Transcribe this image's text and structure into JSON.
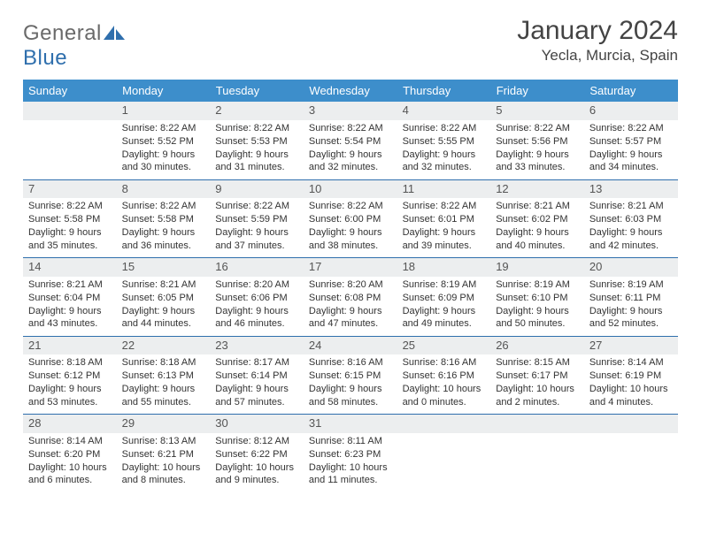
{
  "brand": {
    "general": "General",
    "blue": "Blue"
  },
  "title": "January 2024",
  "location": "Yecla, Murcia, Spain",
  "colors": {
    "header_bg": "#3d8ecb",
    "header_text": "#ffffff",
    "rule": "#2f6fad",
    "daynum_bg": "#eceeef",
    "text": "#333333",
    "logo_general": "#6a6a6a",
    "logo_blue": "#2f6fad"
  },
  "weekdays": [
    "Sunday",
    "Monday",
    "Tuesday",
    "Wednesday",
    "Thursday",
    "Friday",
    "Saturday"
  ],
  "weeks": [
    [
      {
        "n": "",
        "sr": "",
        "ss": "",
        "d1": "",
        "d2": ""
      },
      {
        "n": "1",
        "sr": "Sunrise: 8:22 AM",
        "ss": "Sunset: 5:52 PM",
        "d1": "Daylight: 9 hours",
        "d2": "and 30 minutes."
      },
      {
        "n": "2",
        "sr": "Sunrise: 8:22 AM",
        "ss": "Sunset: 5:53 PM",
        "d1": "Daylight: 9 hours",
        "d2": "and 31 minutes."
      },
      {
        "n": "3",
        "sr": "Sunrise: 8:22 AM",
        "ss": "Sunset: 5:54 PM",
        "d1": "Daylight: 9 hours",
        "d2": "and 32 minutes."
      },
      {
        "n": "4",
        "sr": "Sunrise: 8:22 AM",
        "ss": "Sunset: 5:55 PM",
        "d1": "Daylight: 9 hours",
        "d2": "and 32 minutes."
      },
      {
        "n": "5",
        "sr": "Sunrise: 8:22 AM",
        "ss": "Sunset: 5:56 PM",
        "d1": "Daylight: 9 hours",
        "d2": "and 33 minutes."
      },
      {
        "n": "6",
        "sr": "Sunrise: 8:22 AM",
        "ss": "Sunset: 5:57 PM",
        "d1": "Daylight: 9 hours",
        "d2": "and 34 minutes."
      }
    ],
    [
      {
        "n": "7",
        "sr": "Sunrise: 8:22 AM",
        "ss": "Sunset: 5:58 PM",
        "d1": "Daylight: 9 hours",
        "d2": "and 35 minutes."
      },
      {
        "n": "8",
        "sr": "Sunrise: 8:22 AM",
        "ss": "Sunset: 5:58 PM",
        "d1": "Daylight: 9 hours",
        "d2": "and 36 minutes."
      },
      {
        "n": "9",
        "sr": "Sunrise: 8:22 AM",
        "ss": "Sunset: 5:59 PM",
        "d1": "Daylight: 9 hours",
        "d2": "and 37 minutes."
      },
      {
        "n": "10",
        "sr": "Sunrise: 8:22 AM",
        "ss": "Sunset: 6:00 PM",
        "d1": "Daylight: 9 hours",
        "d2": "and 38 minutes."
      },
      {
        "n": "11",
        "sr": "Sunrise: 8:22 AM",
        "ss": "Sunset: 6:01 PM",
        "d1": "Daylight: 9 hours",
        "d2": "and 39 minutes."
      },
      {
        "n": "12",
        "sr": "Sunrise: 8:21 AM",
        "ss": "Sunset: 6:02 PM",
        "d1": "Daylight: 9 hours",
        "d2": "and 40 minutes."
      },
      {
        "n": "13",
        "sr": "Sunrise: 8:21 AM",
        "ss": "Sunset: 6:03 PM",
        "d1": "Daylight: 9 hours",
        "d2": "and 42 minutes."
      }
    ],
    [
      {
        "n": "14",
        "sr": "Sunrise: 8:21 AM",
        "ss": "Sunset: 6:04 PM",
        "d1": "Daylight: 9 hours",
        "d2": "and 43 minutes."
      },
      {
        "n": "15",
        "sr": "Sunrise: 8:21 AM",
        "ss": "Sunset: 6:05 PM",
        "d1": "Daylight: 9 hours",
        "d2": "and 44 minutes."
      },
      {
        "n": "16",
        "sr": "Sunrise: 8:20 AM",
        "ss": "Sunset: 6:06 PM",
        "d1": "Daylight: 9 hours",
        "d2": "and 46 minutes."
      },
      {
        "n": "17",
        "sr": "Sunrise: 8:20 AM",
        "ss": "Sunset: 6:08 PM",
        "d1": "Daylight: 9 hours",
        "d2": "and 47 minutes."
      },
      {
        "n": "18",
        "sr": "Sunrise: 8:19 AM",
        "ss": "Sunset: 6:09 PM",
        "d1": "Daylight: 9 hours",
        "d2": "and 49 minutes."
      },
      {
        "n": "19",
        "sr": "Sunrise: 8:19 AM",
        "ss": "Sunset: 6:10 PM",
        "d1": "Daylight: 9 hours",
        "d2": "and 50 minutes."
      },
      {
        "n": "20",
        "sr": "Sunrise: 8:19 AM",
        "ss": "Sunset: 6:11 PM",
        "d1": "Daylight: 9 hours",
        "d2": "and 52 minutes."
      }
    ],
    [
      {
        "n": "21",
        "sr": "Sunrise: 8:18 AM",
        "ss": "Sunset: 6:12 PM",
        "d1": "Daylight: 9 hours",
        "d2": "and 53 minutes."
      },
      {
        "n": "22",
        "sr": "Sunrise: 8:18 AM",
        "ss": "Sunset: 6:13 PM",
        "d1": "Daylight: 9 hours",
        "d2": "and 55 minutes."
      },
      {
        "n": "23",
        "sr": "Sunrise: 8:17 AM",
        "ss": "Sunset: 6:14 PM",
        "d1": "Daylight: 9 hours",
        "d2": "and 57 minutes."
      },
      {
        "n": "24",
        "sr": "Sunrise: 8:16 AM",
        "ss": "Sunset: 6:15 PM",
        "d1": "Daylight: 9 hours",
        "d2": "and 58 minutes."
      },
      {
        "n": "25",
        "sr": "Sunrise: 8:16 AM",
        "ss": "Sunset: 6:16 PM",
        "d1": "Daylight: 10 hours",
        "d2": "and 0 minutes."
      },
      {
        "n": "26",
        "sr": "Sunrise: 8:15 AM",
        "ss": "Sunset: 6:17 PM",
        "d1": "Daylight: 10 hours",
        "d2": "and 2 minutes."
      },
      {
        "n": "27",
        "sr": "Sunrise: 8:14 AM",
        "ss": "Sunset: 6:19 PM",
        "d1": "Daylight: 10 hours",
        "d2": "and 4 minutes."
      }
    ],
    [
      {
        "n": "28",
        "sr": "Sunrise: 8:14 AM",
        "ss": "Sunset: 6:20 PM",
        "d1": "Daylight: 10 hours",
        "d2": "and 6 minutes."
      },
      {
        "n": "29",
        "sr": "Sunrise: 8:13 AM",
        "ss": "Sunset: 6:21 PM",
        "d1": "Daylight: 10 hours",
        "d2": "and 8 minutes."
      },
      {
        "n": "30",
        "sr": "Sunrise: 8:12 AM",
        "ss": "Sunset: 6:22 PM",
        "d1": "Daylight: 10 hours",
        "d2": "and 9 minutes."
      },
      {
        "n": "31",
        "sr": "Sunrise: 8:11 AM",
        "ss": "Sunset: 6:23 PM",
        "d1": "Daylight: 10 hours",
        "d2": "and 11 minutes."
      },
      {
        "n": "",
        "sr": "",
        "ss": "",
        "d1": "",
        "d2": ""
      },
      {
        "n": "",
        "sr": "",
        "ss": "",
        "d1": "",
        "d2": ""
      },
      {
        "n": "",
        "sr": "",
        "ss": "",
        "d1": "",
        "d2": ""
      }
    ]
  ]
}
